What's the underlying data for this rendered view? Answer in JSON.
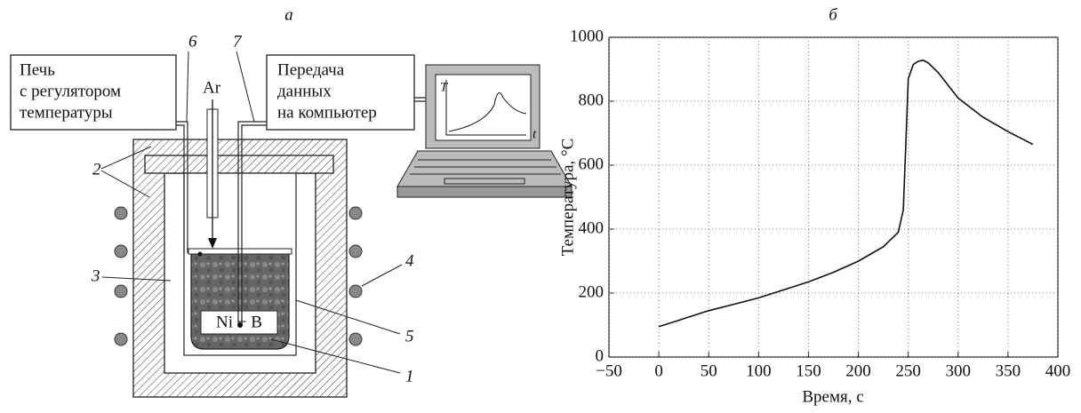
{
  "diagram": {
    "panel_label": "а",
    "furnace_box": [
      "Печь",
      "с регулятором",
      "температуры"
    ],
    "data_box": [
      "Передача",
      "данных",
      "на компьютер"
    ],
    "gas": "Ar",
    "sample": "Ni + B",
    "screen_t_axis": "T",
    "screen_time_axis": "t",
    "numbers": [
      "6",
      "7",
      "2",
      "3",
      "4",
      "5",
      "1"
    ]
  },
  "chart_data": {
    "type": "line",
    "title": "б",
    "x_label": "Время, с",
    "y_label": "Температура, °C",
    "x": [
      0,
      25,
      50,
      75,
      100,
      125,
      150,
      175,
      200,
      225,
      240,
      245,
      248,
      250,
      255,
      260,
      265,
      270,
      280,
      300,
      325,
      350,
      375
    ],
    "values": [
      95,
      120,
      145,
      165,
      185,
      210,
      235,
      265,
      300,
      345,
      390,
      460,
      700,
      870,
      915,
      925,
      928,
      920,
      890,
      810,
      750,
      705,
      665
    ],
    "color": "#111",
    "xlim": [
      -50,
      400
    ],
    "xticks": [
      {
        "value": -50,
        "label": "−50"
      },
      0,
      50,
      100,
      150,
      200,
      250,
      300,
      350,
      400
    ],
    "ylim": [
      0,
      1000
    ],
    "yticks": [
      0,
      200,
      400,
      600,
      800,
      1000
    ],
    "grid": true
  }
}
